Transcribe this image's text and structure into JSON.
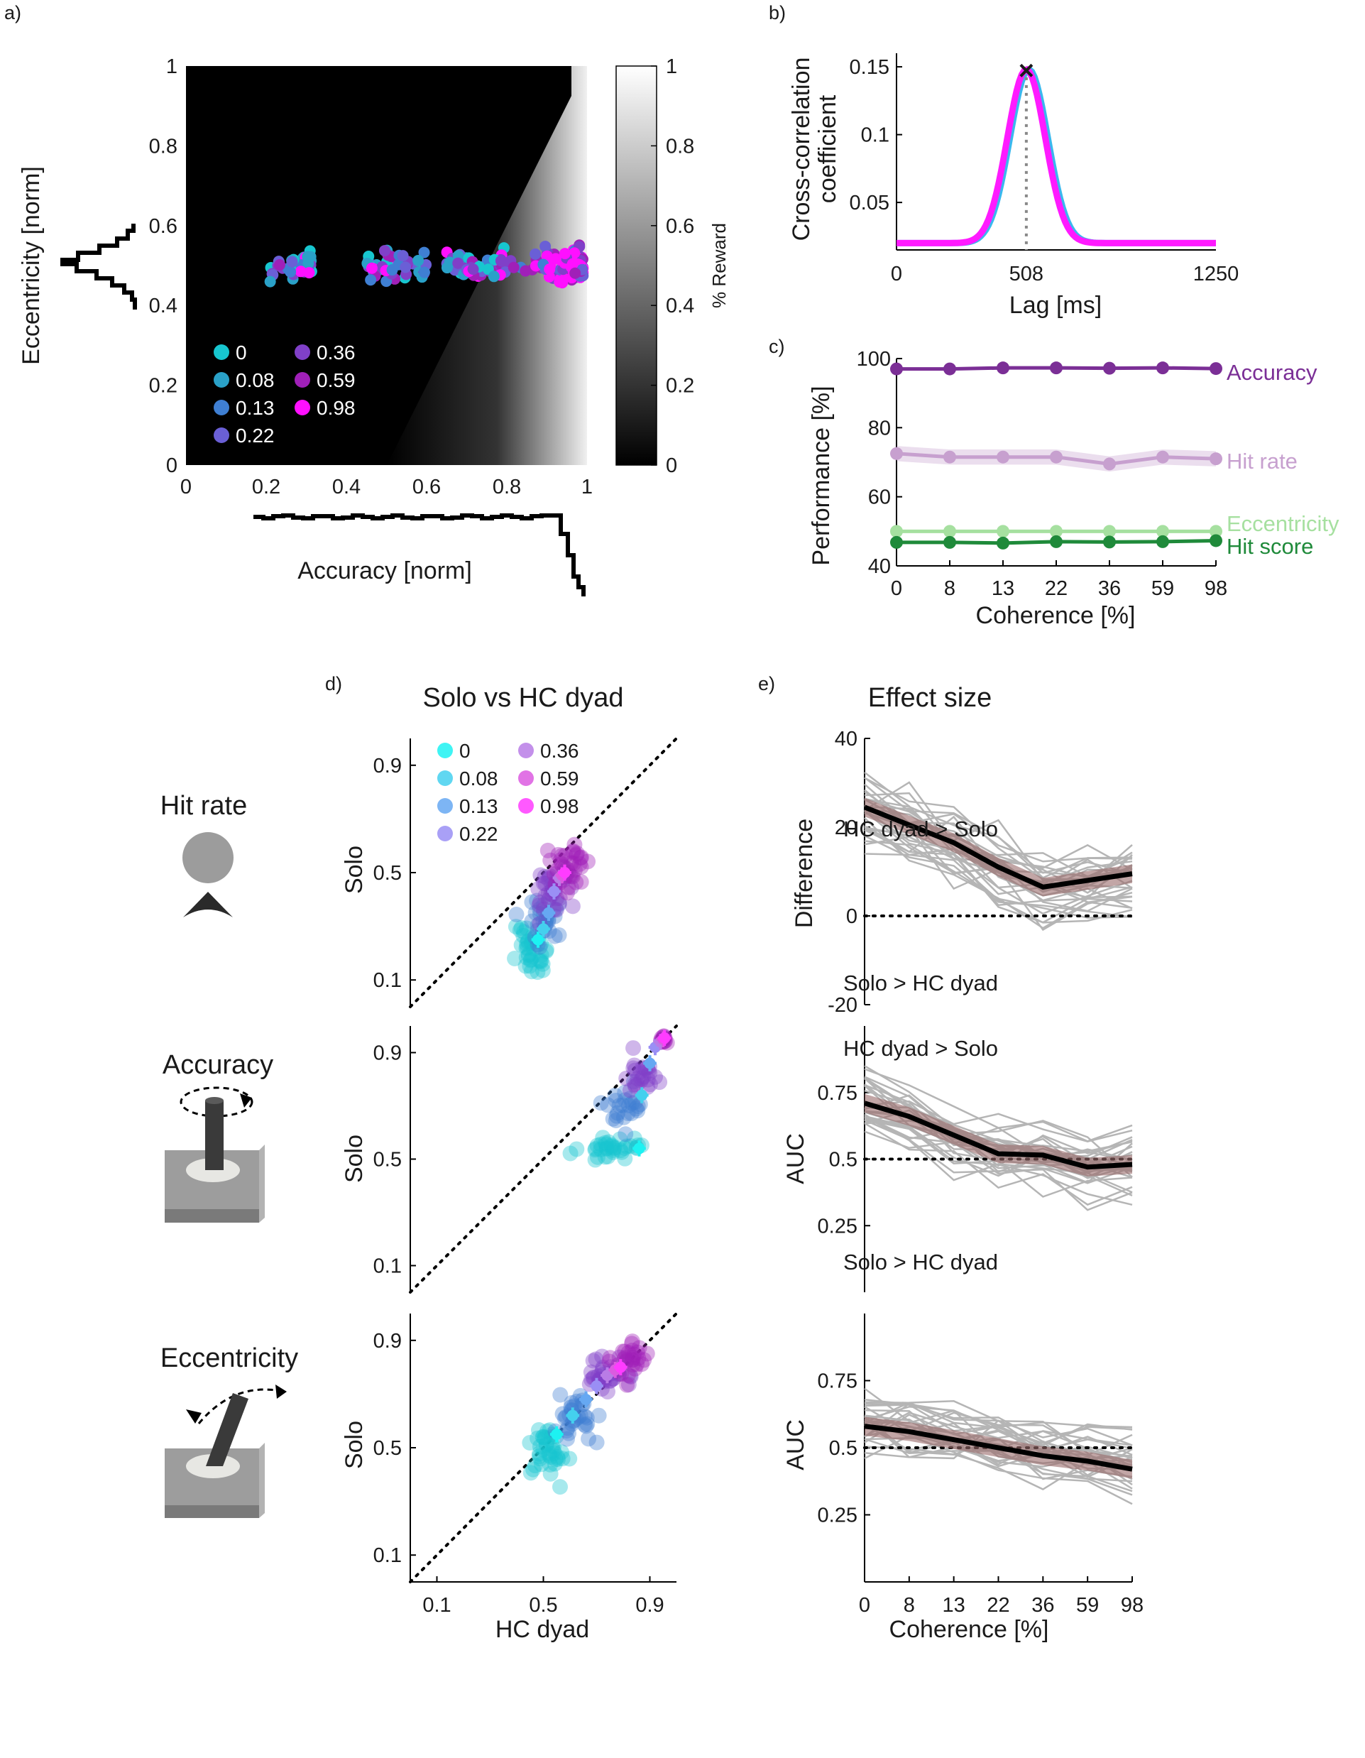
{
  "colors": {
    "coherence": [
      "#17c6cf",
      "#2aa1c8",
      "#3f7fd3",
      "#6a5fd6",
      "#8040c8",
      "#a020b8",
      "#ff10ff"
    ],
    "coherence_light": [
      "#1df2f2",
      "#44d0ee",
      "#66a8f2",
      "#9a8ff5",
      "#b97ce6",
      "#dc5ae0",
      "#ff3cff"
    ],
    "accuracy": "#7b2f96",
    "hitrate": "#c7a0cf",
    "eccentricity": "#a6e0a0",
    "hitscore": "#1f8a3a",
    "effect_band": "#9a6a6a",
    "gray_lines": "#b5b5b5"
  },
  "panels": {
    "a": {
      "label": "a)"
    },
    "b": {
      "label": "b)"
    },
    "c": {
      "label": "c)"
    },
    "d": {
      "label": "d)",
      "title": "Solo vs HC dyad"
    },
    "e": {
      "label": "e)",
      "title": "Effect size"
    }
  },
  "icons": {
    "hitrate": {
      "label": "Hit rate",
      "name": "hit-rate-icon"
    },
    "accuracy": {
      "label": "Accuracy",
      "name": "joystick-rotate-icon"
    },
    "eccentricity": {
      "label": "Eccentricity",
      "name": "joystick-tilt-icon"
    }
  },
  "chart_data": [
    {
      "id": "a",
      "type": "scatter",
      "xlabel": "Accuracy [norm]",
      "ylabel": "Eccentricity [norm]",
      "xlim": [
        0,
        1
      ],
      "ylim": [
        0,
        1
      ],
      "xticks": [
        "0",
        "0.2",
        "0.4",
        "0.6",
        "0.8",
        "1"
      ],
      "yticks": [
        "0",
        "0.2",
        "0.4",
        "0.6",
        "0.8",
        "1"
      ],
      "colorbar": {
        "label": "% Reward",
        "ticks": [
          "0",
          "0.2",
          "0.4",
          "0.6",
          "0.8",
          "1"
        ]
      },
      "legend": [
        "0",
        "0.08",
        "0.13",
        "0.22",
        "0.36",
        "0.59",
        "0.98"
      ],
      "background": "reward map: black left of diagonal, gray gradient toward white at accuracy 1"
    },
    {
      "id": "b",
      "type": "line",
      "xlabel": "Lag [ms]",
      "ylabel": [
        "Cross-correlation",
        "coefficient"
      ],
      "xlim": [
        0,
        1250
      ],
      "ylim": [
        0.015,
        0.16
      ],
      "xticks": [
        "0",
        "508",
        "1250"
      ],
      "yticks": [
        "0.05",
        "0.1",
        "0.15"
      ],
      "peak": {
        "x": 508,
        "y": 0.148,
        "marker": "×"
      },
      "baseline": 0.02
    },
    {
      "id": "c",
      "type": "line",
      "xlabel": "Coherence [%]",
      "ylabel": "Performance [%]",
      "categories": [
        "0",
        "8",
        "13",
        "22",
        "36",
        "59",
        "98"
      ],
      "ylim": [
        40,
        100
      ],
      "yticks": [
        "40",
        "60",
        "80",
        "100"
      ],
      "series": [
        {
          "name": "Accuracy",
          "values": [
            97,
            97,
            97.3,
            97.3,
            97.2,
            97.3,
            97.1
          ]
        },
        {
          "name": "Hit rate",
          "values": [
            72.5,
            71.5,
            71.5,
            71.5,
            69.5,
            71.5,
            71
          ]
        },
        {
          "name": "Eccentricity",
          "values": [
            50,
            50,
            50,
            50,
            50,
            50,
            50
          ]
        },
        {
          "name": "Hit score",
          "values": [
            46.8,
            46.8,
            46.6,
            47,
            46.9,
            47,
            47.3
          ]
        }
      ]
    },
    {
      "id": "d1",
      "type": "scatter",
      "ylabel": "Solo",
      "xlim": [
        0,
        1
      ],
      "ylim": [
        0,
        1
      ],
      "ticks": [
        "0.1",
        "0.5",
        "0.9"
      ],
      "legend": [
        "0",
        "0.08",
        "0.13",
        "0.22",
        "0.36",
        "0.59",
        "0.98"
      ],
      "means": [
        {
          "x": 0.48,
          "y": 0.25
        },
        {
          "x": 0.5,
          "y": 0.29
        },
        {
          "x": 0.52,
          "y": 0.35
        },
        {
          "x": 0.54,
          "y": 0.43
        },
        {
          "x": 0.56,
          "y": 0.48
        },
        {
          "x": 0.57,
          "y": 0.49
        },
        {
          "x": 0.58,
          "y": 0.5
        }
      ]
    },
    {
      "id": "d2",
      "type": "scatter",
      "ylabel": "Solo",
      "xlim": [
        0,
        1
      ],
      "ylim": [
        0,
        1
      ],
      "ticks": [
        "0.1",
        "0.5",
        "0.9"
      ],
      "means": [
        {
          "x": 0.86,
          "y": 0.54
        },
        {
          "x": 0.87,
          "y": 0.74
        },
        {
          "x": 0.9,
          "y": 0.86
        },
        {
          "x": 0.92,
          "y": 0.92
        },
        {
          "x": 0.94,
          "y": 0.94
        },
        {
          "x": 0.95,
          "y": 0.95
        },
        {
          "x": 0.955,
          "y": 0.955
        }
      ]
    },
    {
      "id": "d3",
      "type": "scatter",
      "xlabel": "HC dyad",
      "ylabel": "Solo",
      "xlim": [
        0,
        1
      ],
      "ylim": [
        0,
        1
      ],
      "ticks": [
        "0.1",
        "0.5",
        "0.9"
      ],
      "means": [
        {
          "x": 0.55,
          "y": 0.55
        },
        {
          "x": 0.61,
          "y": 0.62
        },
        {
          "x": 0.66,
          "y": 0.68
        },
        {
          "x": 0.7,
          "y": 0.73
        },
        {
          "x": 0.74,
          "y": 0.77
        },
        {
          "x": 0.77,
          "y": 0.79
        },
        {
          "x": 0.79,
          "y": 0.8
        }
      ]
    },
    {
      "id": "e1",
      "type": "line",
      "ylabel": "Difference",
      "categories": [
        "0",
        "8",
        "13",
        "22",
        "36",
        "59",
        "98"
      ],
      "ylim": [
        -20,
        40
      ],
      "yticks": [
        "-20",
        "0",
        "20",
        "40"
      ],
      "annotations": [
        "HC dyad > Solo",
        "Solo > HC dyad"
      ],
      "reference": 0,
      "series": [
        {
          "values": [
            24.5,
            20.5,
            16.5,
            11,
            6.5,
            8,
            9.5
          ]
        }
      ]
    },
    {
      "id": "e2",
      "type": "line",
      "ylabel": "AUC",
      "categories": [
        "0",
        "8",
        "13",
        "22",
        "36",
        "59",
        "98"
      ],
      "ylim": [
        0,
        1
      ],
      "yticks": [
        "0.25",
        "0.5",
        "0.75"
      ],
      "annotations": [
        "HC dyad > Solo",
        "Solo > HC dyad"
      ],
      "reference": 0.5,
      "series": [
        {
          "values": [
            0.71,
            0.66,
            0.59,
            0.52,
            0.515,
            0.47,
            0.48
          ]
        }
      ]
    },
    {
      "id": "e3",
      "type": "line",
      "xlabel": "Coherence [%]",
      "ylabel": "AUC",
      "categories": [
        "0",
        "8",
        "13",
        "22",
        "36",
        "59",
        "98"
      ],
      "ylim": [
        0,
        1
      ],
      "yticks": [
        "0.25",
        "0.5",
        "0.75"
      ],
      "reference": 0.5,
      "series": [
        {
          "values": [
            0.58,
            0.56,
            0.53,
            0.5,
            0.47,
            0.45,
            0.42
          ]
        }
      ]
    }
  ]
}
